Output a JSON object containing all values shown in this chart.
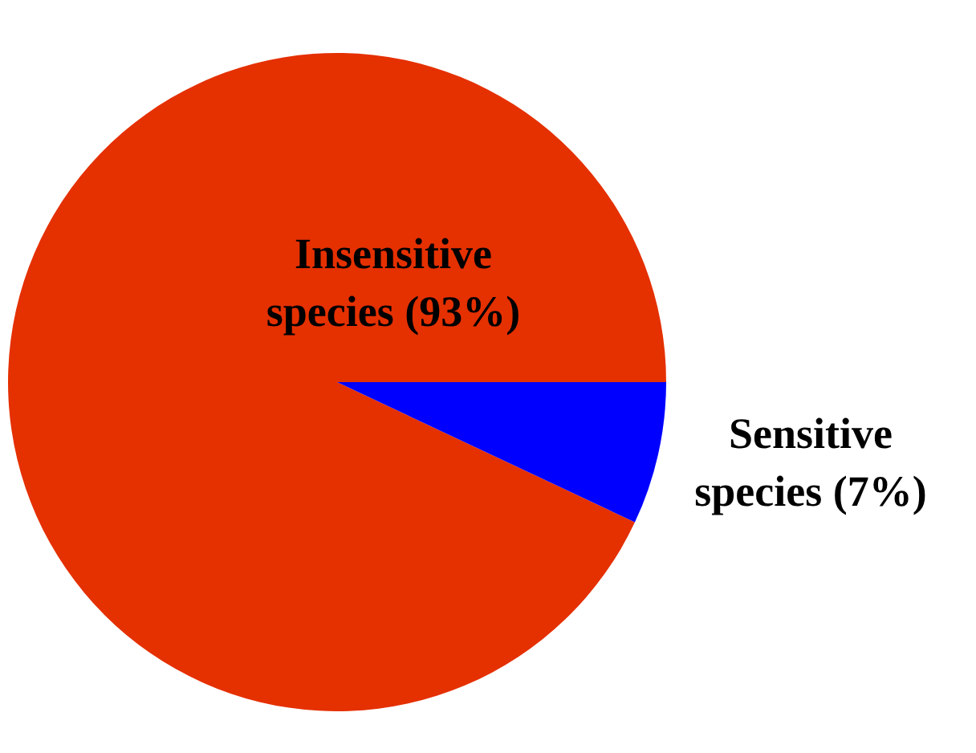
{
  "chart_data": {
    "type": "pie",
    "categories": [
      "Insensitive species",
      "Sensitive species"
    ],
    "values": [
      93,
      7
    ],
    "value_labels": [
      "(93%)",
      "(7%)"
    ],
    "colors": [
      "#e53000",
      "#0000ff"
    ],
    "legend": false
  }
}
